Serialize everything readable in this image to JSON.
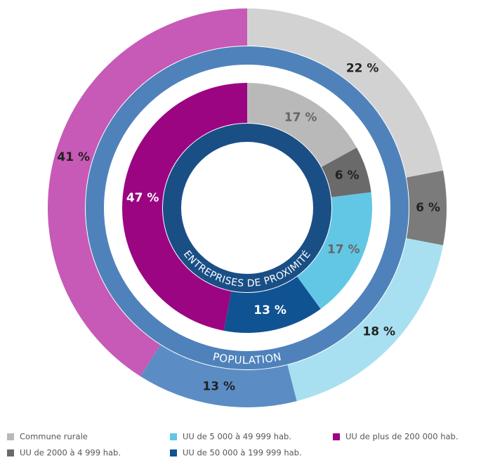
{
  "chart_data": {
    "type": "donut",
    "categories": [
      "Commune rurale",
      "UU de 2000 à 4 999 hab.",
      "UU de 5 000 à 49 999 hab.",
      "UU de 50 000 à 199 999 hab.",
      "UU de plus de 200 000 hab."
    ],
    "series": [
      {
        "name": "POPULATION",
        "values": [
          22,
          6,
          18,
          13,
          41
        ],
        "value_labels": [
          "22 %",
          "6 %",
          "18 %",
          "13 %",
          "41 %"
        ],
        "colors": [
          "#d2d2d2",
          "#7b7b7b",
          "#a8e0f1",
          "#5b8dc4",
          "#c65ab6"
        ]
      },
      {
        "name": "ENTREPRISES DE PROXIMITÉ",
        "values": [
          17,
          6,
          17,
          13,
          47
        ],
        "value_labels": [
          "17 %",
          "6 %",
          "17 %",
          "13 %",
          "47 %"
        ],
        "colors": [
          "#b9b9b9",
          "#6a6a6a",
          "#62c7e5",
          "#0f5393",
          "#9b0582"
        ]
      }
    ]
  }
}
